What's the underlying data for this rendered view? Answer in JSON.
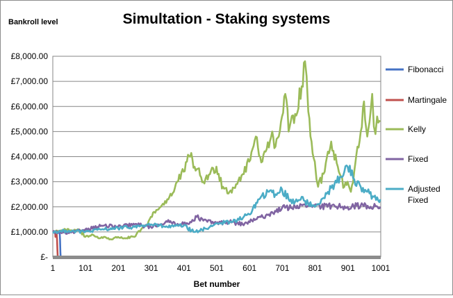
{
  "chart_data": {
    "type": "line",
    "title": "Simultation - Staking systems",
    "ylabel": "Bankroll  level",
    "xlabel": "Bet number",
    "xlim": [
      1,
      1001
    ],
    "ylim": [
      0,
      8000
    ],
    "y_ticks": [
      {
        "value": 0,
        "label": "£-"
      },
      {
        "value": 1000,
        "label": "£1,000.00"
      },
      {
        "value": 2000,
        "label": "£2,000.00"
      },
      {
        "value": 3000,
        "label": "£3,000.00"
      },
      {
        "value": 4000,
        "label": "£4,000.00"
      },
      {
        "value": 5000,
        "label": "£5,000.00"
      },
      {
        "value": 6000,
        "label": "£6,000.00"
      },
      {
        "value": 7000,
        "label": "£7,000.00"
      },
      {
        "value": 8000,
        "label": "£8,000.00"
      }
    ],
    "x_ticks": [
      {
        "value": 1,
        "label": "1"
      },
      {
        "value": 101,
        "label": "101"
      },
      {
        "value": 201,
        "label": "201"
      },
      {
        "value": 301,
        "label": "301"
      },
      {
        "value": 401,
        "label": "401"
      },
      {
        "value": 501,
        "label": "501"
      },
      {
        "value": 601,
        "label": "601"
      },
      {
        "value": 701,
        "label": "701"
      },
      {
        "value": 801,
        "label": "801"
      },
      {
        "value": 901,
        "label": "901"
      },
      {
        "value": 1001,
        "label": "1001"
      }
    ],
    "grid": "horizontal",
    "legend_position": "right",
    "series": [
      {
        "name": "Fibonacci",
        "color": "#4472c4",
        "x": [
          1,
          8,
          16,
          20,
          22,
          23,
          24,
          25
        ],
        "y": [
          1000,
          1010,
          980,
          1020,
          950,
          700,
          200,
          0
        ]
      },
      {
        "name": "Martingale",
        "color": "#c0504d",
        "x": [
          1,
          5,
          8,
          9,
          10,
          12,
          14,
          15,
          16
        ],
        "y": [
          1000,
          980,
          1020,
          800,
          1000,
          1050,
          700,
          300,
          0
        ]
      },
      {
        "name": "Kelly",
        "color": "#9bbb59",
        "x": [
          1,
          20,
          40,
          60,
          80,
          100,
          120,
          140,
          160,
          180,
          200,
          220,
          250,
          270,
          290,
          300,
          310,
          330,
          350,
          370,
          380,
          400,
          410,
          420,
          440,
          460,
          480,
          500,
          520,
          540,
          560,
          580,
          600,
          610,
          620,
          640,
          650,
          670,
          680,
          690,
          700,
          710,
          720,
          740,
          760,
          770,
          775,
          780,
          790,
          800,
          805,
          810,
          830,
          840,
          850,
          870,
          880,
          890,
          900,
          910,
          920,
          940,
          950,
          960,
          970,
          975,
          980,
          985,
          990,
          1000
        ],
        "y": [
          1000,
          1050,
          1100,
          1000,
          1100,
          800,
          900,
          750,
          800,
          700,
          800,
          750,
          800,
          1100,
          1300,
          1600,
          1800,
          2000,
          2300,
          2600,
          3000,
          3400,
          3800,
          4000,
          3500,
          3000,
          3300,
          3600,
          2800,
          2600,
          2900,
          3300,
          3800,
          4300,
          4800,
          3800,
          4200,
          5000,
          4400,
          4800,
          5600,
          6500,
          5000,
          5700,
          6800,
          7800,
          7200,
          5800,
          4600,
          3800,
          3100,
          2800,
          3400,
          4200,
          4600,
          3600,
          3200,
          2800,
          3000,
          2600,
          3400,
          5000,
          6200,
          4800,
          5800,
          6500,
          5200,
          4900,
          5600,
          5400
        ]
      },
      {
        "name": "Fixed",
        "color": "#8064a2",
        "x": [
          1,
          50,
          100,
          150,
          200,
          250,
          300,
          350,
          400,
          420,
          440,
          460,
          500,
          540,
          580,
          620,
          660,
          700,
          740,
          780,
          820,
          860,
          900,
          940,
          1000
        ],
        "y": [
          1000,
          950,
          1100,
          1250,
          1200,
          1300,
          1200,
          1400,
          1300,
          1400,
          1600,
          1450,
          1350,
          1400,
          1300,
          1500,
          1700,
          1950,
          2000,
          2050,
          2000,
          2050,
          2000,
          2050,
          2000
        ]
      },
      {
        "name": "Adjusted\nFixed",
        "color": "#4bacc6",
        "x": [
          1,
          50,
          100,
          150,
          200,
          250,
          300,
          350,
          400,
          430,
          450,
          480,
          500,
          550,
          600,
          630,
          660,
          680,
          700,
          720,
          740,
          760,
          780,
          800,
          820,
          840,
          860,
          880,
          890,
          900,
          920,
          940,
          960,
          980,
          1000
        ],
        "y": [
          1000,
          1050,
          1000,
          1100,
          1150,
          1200,
          1300,
          1200,
          1250,
          1000,
          1050,
          1200,
          1350,
          1400,
          1700,
          2300,
          2600,
          2500,
          2700,
          2300,
          2200,
          2400,
          2100,
          2000,
          2300,
          2600,
          2900,
          3200,
          3400,
          3600,
          3100,
          2800,
          2600,
          2400,
          2300
        ]
      }
    ]
  }
}
